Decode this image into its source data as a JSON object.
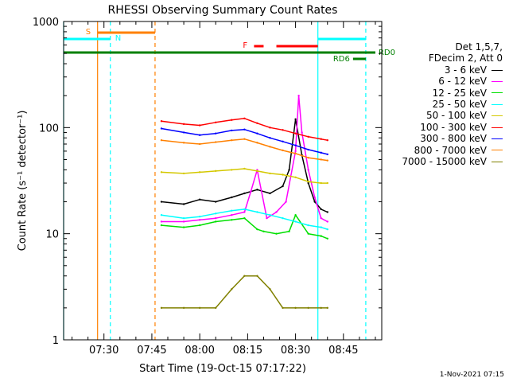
{
  "title": "RHESSI Observing Summary Count Rates",
  "xlabel": "Start Time (19-Oct-15 07:17:22)",
  "ylabel": "Count Rate (s⁻¹ detector⁻¹)",
  "footer": "1-Nov-2021 07:15",
  "legend_header": [
    "Det 1,5,7,",
    "FDecim 2, Att 0"
  ],
  "legend": [
    {
      "label": "3 - 6 keV",
      "color": "#000000"
    },
    {
      "label": "6 - 12 keV",
      "color": "#ff00ff"
    },
    {
      "label": "12 - 25 keV",
      "color": "#00e000"
    },
    {
      "label": "25 - 50 keV",
      "color": "#00ffff"
    },
    {
      "label": "50 - 100 keV",
      "color": "#d4c800"
    },
    {
      "label": "100 - 300 keV",
      "color": "#ff0000"
    },
    {
      "label": "300 - 800 keV",
      "color": "#0000ff"
    },
    {
      "label": "800 - 7000 keV",
      "color": "#ff8000"
    },
    {
      "label": "7000 - 15000 keV",
      "color": "#808000"
    }
  ],
  "chart_data": {
    "type": "line",
    "y_scale": "log",
    "ylim": [
      1,
      1000
    ],
    "yticks": [
      1,
      10,
      100,
      1000
    ],
    "ytick_labels": [
      "1",
      "10",
      "100",
      "1000"
    ],
    "xlim": [
      "07:17:22",
      "08:57:00"
    ],
    "xticks": [
      "07:30",
      "07:45",
      "08:00",
      "08:15",
      "08:30",
      "08:45"
    ],
    "flag_labels": {
      "saa": "S",
      "night": "N",
      "flare": "F",
      "rd0": "RD0",
      "rd6": "RD6"
    },
    "flags": {
      "saa": {
        "color": "#ff8000",
        "start": "07:28",
        "end": "07:46"
      },
      "night": [
        {
          "color": "#00ffff",
          "start": "07:17:22",
          "end": "07:32"
        },
        {
          "color": "#00ffff",
          "start": "08:37",
          "end": "08:52"
        }
      ],
      "flare": {
        "color": "#ff0000",
        "segments": [
          [
            "08:17",
            "08:20"
          ],
          [
            "08:24",
            "08:37"
          ]
        ]
      },
      "rd0": {
        "color": "#008000",
        "start": "07:17:22",
        "end": "08:55"
      },
      "rd6": {
        "color": "#008000",
        "start": "08:48",
        "end": "08:52"
      }
    },
    "vlines": [
      {
        "time": "07:17:22",
        "color": "#00ffff",
        "style": "solid"
      },
      {
        "time": "07:28",
        "color": "#ff8000",
        "style": "solid"
      },
      {
        "time": "07:32",
        "color": "#00ffff",
        "style": "dashed"
      },
      {
        "time": "07:46",
        "color": "#ff8000",
        "style": "dashed"
      },
      {
        "time": "08:37",
        "color": "#00ffff",
        "style": "solid"
      },
      {
        "time": "08:52",
        "color": "#00ffff",
        "style": "dashed"
      }
    ],
    "series": [
      {
        "name": "3 - 6 keV",
        "color": "#000000",
        "x": [
          "07:48",
          "07:55",
          "08:00",
          "08:05",
          "08:10",
          "08:14",
          "08:18",
          "08:22",
          "08:26",
          "08:28",
          "08:30",
          "08:32",
          "08:34",
          "08:36",
          "08:38",
          "08:40"
        ],
        "y": [
          20,
          19,
          21,
          20,
          22,
          24,
          26,
          24,
          28,
          40,
          120,
          55,
          30,
          20,
          17,
          16
        ]
      },
      {
        "name": "6 - 12 keV",
        "color": "#ff00ff",
        "x": [
          "07:48",
          "07:55",
          "08:00",
          "08:05",
          "08:10",
          "08:14",
          "08:16",
          "08:18",
          "08:21",
          "08:24",
          "08:27",
          "08:30",
          "08:31",
          "08:32",
          "08:34",
          "08:36",
          "08:38",
          "08:40"
        ],
        "y": [
          13,
          13,
          13.5,
          14,
          15,
          16,
          25,
          40,
          14,
          16,
          20,
          60,
          200,
          90,
          40,
          22,
          14,
          13
        ]
      },
      {
        "name": "12 - 25 keV",
        "color": "#00e000",
        "x": [
          "07:48",
          "07:55",
          "08:00",
          "08:05",
          "08:10",
          "08:14",
          "08:18",
          "08:20",
          "08:24",
          "08:28",
          "08:30",
          "08:34",
          "08:38",
          "08:40"
        ],
        "y": [
          12,
          11.5,
          12,
          13,
          13.5,
          14,
          11,
          10.5,
          10,
          10.5,
          15,
          10,
          9.5,
          9
        ]
      },
      {
        "name": "25 - 50 keV",
        "color": "#00ffff",
        "x": [
          "07:48",
          "07:55",
          "08:00",
          "08:05",
          "08:10",
          "08:14",
          "08:18",
          "08:22",
          "08:26",
          "08:30",
          "08:34",
          "08:38",
          "08:40"
        ],
        "y": [
          15,
          14,
          14.5,
          15.5,
          16.5,
          17,
          16,
          15,
          14,
          13,
          12,
          11.5,
          11
        ]
      },
      {
        "name": "50 - 100 keV",
        "color": "#d4c800",
        "x": [
          "07:48",
          "07:55",
          "08:00",
          "08:05",
          "08:10",
          "08:14",
          "08:18",
          "08:22",
          "08:26",
          "08:30",
          "08:34",
          "08:38",
          "08:40"
        ],
        "y": [
          38,
          37,
          38,
          39,
          40,
          41,
          39,
          37,
          36,
          34,
          31,
          30,
          30
        ]
      },
      {
        "name": "100 - 300 keV",
        "color": "#ff0000",
        "x": [
          "07:48",
          "07:55",
          "08:00",
          "08:05",
          "08:10",
          "08:14",
          "08:18",
          "08:22",
          "08:26",
          "08:30",
          "08:34",
          "08:38",
          "08:40"
        ],
        "y": [
          115,
          108,
          105,
          112,
          118,
          122,
          110,
          100,
          95,
          88,
          82,
          78,
          76
        ]
      },
      {
        "name": "300 - 800 keV",
        "color": "#0000ff",
        "x": [
          "07:48",
          "07:55",
          "08:00",
          "08:05",
          "08:10",
          "08:14",
          "08:18",
          "08:22",
          "08:26",
          "08:30",
          "08:34",
          "08:38",
          "08:40"
        ],
        "y": [
          98,
          90,
          85,
          88,
          94,
          96,
          88,
          80,
          74,
          68,
          62,
          58,
          56
        ]
      },
      {
        "name": "800 - 7000 keV",
        "color": "#ff8000",
        "x": [
          "07:48",
          "07:55",
          "08:00",
          "08:05",
          "08:10",
          "08:14",
          "08:18",
          "08:22",
          "08:26",
          "08:30",
          "08:34",
          "08:38",
          "08:40"
        ],
        "y": [
          76,
          72,
          70,
          73,
          76,
          78,
          72,
          66,
          61,
          57,
          52,
          50,
          49
        ]
      },
      {
        "name": "7000 - 15000 keV",
        "color": "#808000",
        "x": [
          "07:48",
          "07:55",
          "08:00",
          "08:05",
          "08:10",
          "08:14",
          "08:18",
          "08:22",
          "08:26",
          "08:30",
          "08:34",
          "08:38",
          "08:40"
        ],
        "y": [
          2,
          2,
          2,
          2,
          3,
          4,
          4,
          3,
          2,
          2,
          2,
          2,
          2
        ]
      }
    ]
  }
}
